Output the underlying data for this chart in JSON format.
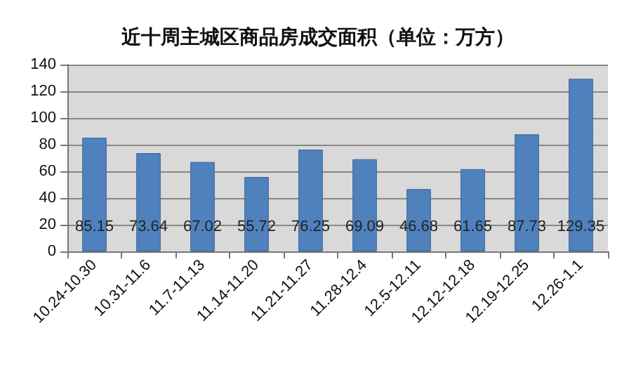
{
  "chart_data": {
    "type": "bar",
    "title": "近十周主城区商品房成交面积（单位：万方）",
    "categories": [
      "10.24-10.30",
      "10.31-11.6",
      "11.7-11.13",
      "11.14-11.20",
      "11.21-11.27",
      "11.28-12.4",
      "12.5-12.11",
      "12.12-12.18",
      "12.19-12.25",
      "12.26-1.1"
    ],
    "values": [
      85.15,
      73.64,
      67.02,
      55.72,
      76.25,
      69.09,
      46.68,
      61.65,
      87.73,
      129.35
    ],
    "color": "#4f81bd",
    "ylim": [
      0,
      140
    ],
    "yticks": [
      0,
      20,
      40,
      60,
      80,
      100,
      120,
      140
    ],
    "grid": "y",
    "data_labels": true
  }
}
